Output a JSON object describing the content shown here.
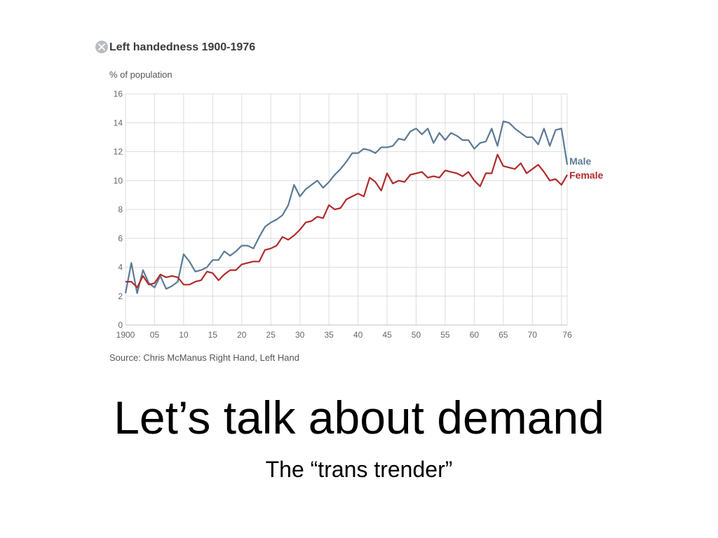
{
  "slide": {
    "title": "Let’s talk about demand",
    "subtitle": "The “trans trender”"
  },
  "chart_data": {
    "type": "line",
    "title": "Left handedness 1900-1976",
    "ylabel": "% of population",
    "source": "Source: Chris McManus Right Hand, Left Hand",
    "xlim": [
      1900,
      1976
    ],
    "ylim": [
      0,
      16
    ],
    "yticks": [
      0,
      2,
      4,
      6,
      8,
      10,
      12,
      14,
      16
    ],
    "xticks": [
      1900,
      1905,
      1910,
      1915,
      1920,
      1925,
      1930,
      1935,
      1940,
      1945,
      1950,
      1955,
      1960,
      1965,
      1970,
      1976
    ],
    "xtick_labels": [
      "1900",
      "05",
      "10",
      "15",
      "20",
      "25",
      "30",
      "35",
      "40",
      "45",
      "50",
      "55",
      "60",
      "65",
      "70",
      "76"
    ],
    "grid": true,
    "legend": "end-of-line labels, right",
    "x": [
      1900,
      1901,
      1902,
      1903,
      1904,
      1905,
      1906,
      1907,
      1908,
      1909,
      1910,
      1911,
      1912,
      1913,
      1914,
      1915,
      1916,
      1917,
      1918,
      1919,
      1920,
      1921,
      1922,
      1923,
      1924,
      1925,
      1926,
      1927,
      1928,
      1929,
      1930,
      1931,
      1932,
      1933,
      1934,
      1935,
      1936,
      1937,
      1938,
      1939,
      1940,
      1941,
      1942,
      1943,
      1944,
      1945,
      1946,
      1947,
      1948,
      1949,
      1950,
      1951,
      1952,
      1953,
      1954,
      1955,
      1956,
      1957,
      1958,
      1959,
      1960,
      1961,
      1962,
      1963,
      1964,
      1965,
      1966,
      1967,
      1968,
      1969,
      1970,
      1971,
      1972,
      1973,
      1974,
      1975,
      1976
    ],
    "series": [
      {
        "name": "Male",
        "color": "#5b7a96",
        "values": [
          2.2,
          4.3,
          2.2,
          3.8,
          2.9,
          2.6,
          3.4,
          2.5,
          2.7,
          3.0,
          4.9,
          4.4,
          3.7,
          3.8,
          4.0,
          4.5,
          4.5,
          5.1,
          4.8,
          5.1,
          5.5,
          5.5,
          5.3,
          6.1,
          6.8,
          7.1,
          7.3,
          7.6,
          8.3,
          9.7,
          8.9,
          9.4,
          9.7,
          10.0,
          9.5,
          9.9,
          10.4,
          10.8,
          11.3,
          11.9,
          11.9,
          12.2,
          12.1,
          11.9,
          12.3,
          12.3,
          12.4,
          12.9,
          12.8,
          13.4,
          13.6,
          13.2,
          13.6,
          12.6,
          13.3,
          12.8,
          13.3,
          13.1,
          12.8,
          12.8,
          12.2,
          12.6,
          12.7,
          13.6,
          12.4,
          14.1,
          14.0,
          13.6,
          13.3,
          13.0,
          13.0,
          12.5,
          13.6,
          12.4,
          13.5,
          13.6,
          11.1
        ]
      },
      {
        "name": "Female",
        "color": "#b22a2a",
        "values": [
          3.0,
          3.0,
          2.6,
          3.4,
          2.8,
          2.9,
          3.5,
          3.3,
          3.4,
          3.3,
          2.8,
          2.8,
          3.0,
          3.1,
          3.7,
          3.6,
          3.1,
          3.5,
          3.8,
          3.8,
          4.2,
          4.3,
          4.4,
          4.4,
          5.2,
          5.3,
          5.5,
          6.1,
          5.9,
          6.2,
          6.6,
          7.1,
          7.2,
          7.5,
          7.4,
          8.3,
          8.0,
          8.1,
          8.7,
          8.9,
          9.1,
          8.9,
          10.2,
          9.9,
          9.3,
          10.5,
          9.8,
          10.0,
          9.9,
          10.4,
          10.5,
          10.6,
          10.2,
          10.3,
          10.2,
          10.7,
          10.6,
          10.5,
          10.3,
          10.6,
          10.0,
          9.6,
          10.5,
          10.5,
          11.8,
          11.0,
          10.9,
          10.8,
          11.2,
          10.5,
          10.8,
          11.1,
          10.6,
          10.0,
          10.1,
          9.7,
          10.4
        ]
      }
    ]
  }
}
